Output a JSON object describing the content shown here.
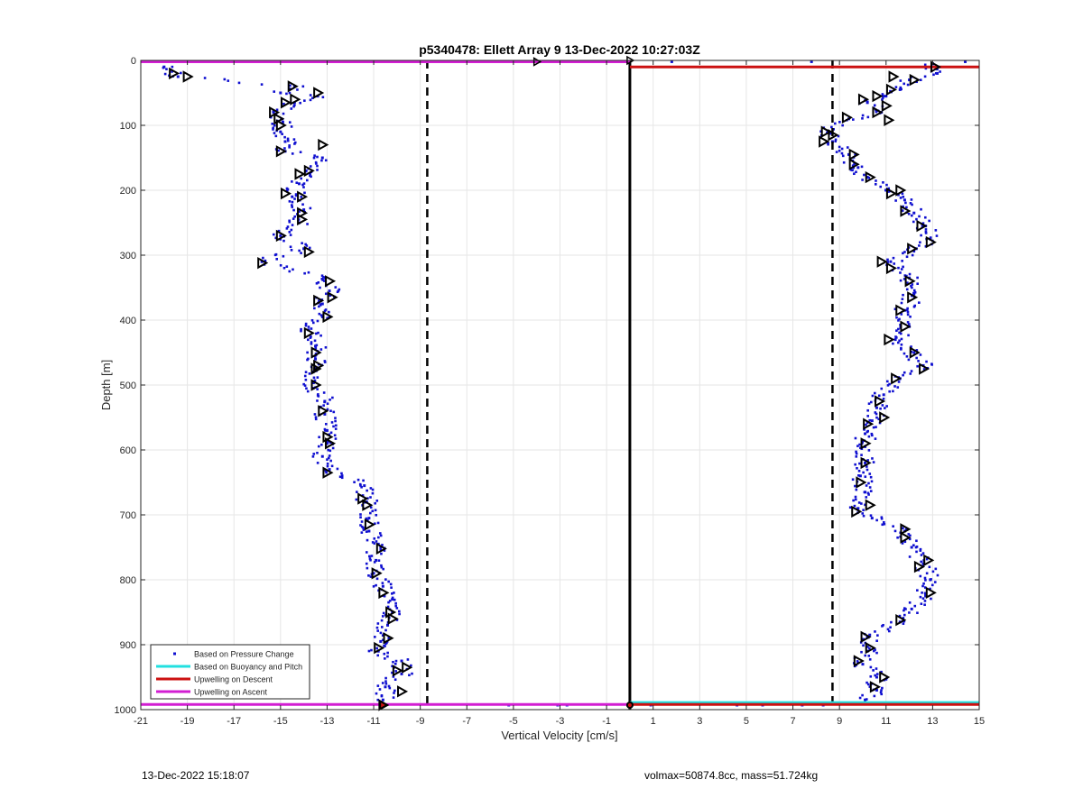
{
  "footer": {
    "timestamp": "13-Dec-2022 15:18:07",
    "params": "volmax=50874.8cc, mass=51.724kg"
  },
  "chart_data": {
    "type": "scatter",
    "title": "p5340478: Ellett Array 9 13-Dec-2022 10:27:03Z",
    "xlabel": "Vertical Velocity [cm/s]",
    "ylabel": "Depth [m]",
    "xlim": [
      -21,
      15
    ],
    "ylim": [
      0,
      1000
    ],
    "y_reversed": true,
    "grid": true,
    "xticks": [
      -21,
      -19,
      -17,
      -15,
      -13,
      -11,
      -9,
      -7,
      -5,
      -3,
      -1,
      1,
      3,
      5,
      7,
      9,
      11,
      13,
      15
    ],
    "xtick_labels": [
      "-21",
      "-19",
      "-17",
      "-15",
      "-13",
      "-11",
      "-9",
      "-7",
      "-5",
      "-3",
      "-1",
      "1",
      "3",
      "5",
      "7",
      "9",
      "11",
      "13",
      "15"
    ],
    "yticks": [
      0,
      100,
      200,
      300,
      400,
      500,
      600,
      700,
      800,
      900,
      1000
    ],
    "ytick_labels": [
      "0",
      "100",
      "200",
      "300",
      "400",
      "500",
      "600",
      "700",
      "800",
      "900",
      "1000"
    ],
    "legend_position": "bottom-left",
    "colors": {
      "pressure": "#1010d0",
      "buoyancy": "#22e0e0",
      "descent": "#cc1111",
      "ascent": "#d21ed2",
      "marker": "#000000"
    },
    "legend": [
      {
        "label": "Based on Pressure Change",
        "style": "dot",
        "color": "#1010d0"
      },
      {
        "label": "Based on Buoyancy and Pitch",
        "style": "line",
        "color": "#22e0e0"
      },
      {
        "label": "Upwelling on Descent",
        "style": "line",
        "color": "#cc1111"
      },
      {
        "label": "Upwelling on Ascent",
        "style": "line",
        "color": "#d21ed2"
      }
    ],
    "reference_lines": [
      {
        "type": "vertical",
        "x": -8.7,
        "style": "dashed",
        "color": "#000000"
      },
      {
        "type": "vertical",
        "x": 8.7,
        "style": "dashed",
        "color": "#000000"
      },
      {
        "type": "vertical",
        "x": 0,
        "style": "solid",
        "color": "#000000"
      }
    ],
    "upwelling_lines": [
      {
        "series": "descent",
        "y": [
          10,
          10
        ],
        "x": [
          0,
          15
        ],
        "color": "#cc1111"
      },
      {
        "series": "ascent",
        "y": [
          2,
          2
        ],
        "x": [
          -21,
          0
        ],
        "color": "#d21ed2"
      },
      {
        "series": "buoyancy",
        "y": [
          989,
          989
        ],
        "x": [
          0,
          15
        ],
        "color": "#22e0e0"
      },
      {
        "series": "descent",
        "y": [
          992,
          992
        ],
        "x": [
          0,
          15
        ],
        "color": "#cc1111"
      },
      {
        "series": "ascent",
        "y": [
          992,
          992
        ],
        "x": [
          -21,
          0
        ],
        "color": "#d21ed2"
      }
    ],
    "series": [
      {
        "name": "Based on Pressure Change",
        "profile": "descent",
        "points": [
          [
            13.0,
            5
          ],
          [
            13.2,
            20
          ],
          [
            12.0,
            30
          ],
          [
            11.6,
            45
          ],
          [
            11.0,
            55
          ],
          [
            10.2,
            65
          ],
          [
            10.8,
            80
          ],
          [
            9.4,
            90
          ],
          [
            8.5,
            110
          ],
          [
            8.7,
            125
          ],
          [
            9.4,
            145
          ],
          [
            9.8,
            165
          ],
          [
            10.2,
            180
          ],
          [
            11.0,
            200
          ],
          [
            11.8,
            215
          ],
          [
            12.2,
            235
          ],
          [
            12.7,
            255
          ],
          [
            12.9,
            275
          ],
          [
            12.3,
            290
          ],
          [
            11.2,
            310
          ],
          [
            12.0,
            335
          ],
          [
            12.2,
            360
          ],
          [
            11.8,
            385
          ],
          [
            12.0,
            410
          ],
          [
            11.4,
            430
          ],
          [
            12.2,
            450
          ],
          [
            12.6,
            470
          ],
          [
            11.6,
            490
          ],
          [
            10.9,
            515
          ],
          [
            10.6,
            535
          ],
          [
            10.4,
            555
          ],
          [
            10.1,
            575
          ],
          [
            10.1,
            595
          ],
          [
            10.1,
            620
          ],
          [
            9.9,
            640
          ],
          [
            10.1,
            665
          ],
          [
            9.8,
            690
          ],
          [
            10.4,
            705
          ],
          [
            11.8,
            725
          ],
          [
            12.1,
            750
          ],
          [
            12.6,
            775
          ],
          [
            12.9,
            800
          ],
          [
            12.7,
            825
          ],
          [
            12.1,
            845
          ],
          [
            11.6,
            865
          ],
          [
            10.3,
            885
          ],
          [
            10.2,
            910
          ],
          [
            10.0,
            930
          ],
          [
            10.6,
            950
          ],
          [
            10.6,
            970
          ],
          [
            10.1,
            985
          ]
        ]
      },
      {
        "name": "Based on Pressure Change",
        "profile": "ascent",
        "points": [
          [
            -20.0,
            10
          ],
          [
            -19.4,
            25
          ],
          [
            -14.4,
            40
          ],
          [
            -15.0,
            50
          ],
          [
            -13.4,
            55
          ],
          [
            -14.4,
            65
          ],
          [
            -15.3,
            80
          ],
          [
            -14.9,
            95
          ],
          [
            -15.0,
            110
          ],
          [
            -14.8,
            125
          ],
          [
            -14.8,
            140
          ],
          [
            -13.2,
            150
          ],
          [
            -13.9,
            170
          ],
          [
            -14.2,
            190
          ],
          [
            -14.5,
            210
          ],
          [
            -14.0,
            230
          ],
          [
            -14.2,
            250
          ],
          [
            -15.0,
            270
          ],
          [
            -14.0,
            290
          ],
          [
            -15.8,
            310
          ],
          [
            -13.1,
            335
          ],
          [
            -12.9,
            355
          ],
          [
            -13.2,
            375
          ],
          [
            -13.2,
            395
          ],
          [
            -13.8,
            415
          ],
          [
            -13.5,
            440
          ],
          [
            -13.5,
            460
          ],
          [
            -13.6,
            480
          ],
          [
            -13.6,
            505
          ],
          [
            -13.1,
            525
          ],
          [
            -13.1,
            545
          ],
          [
            -13.0,
            570
          ],
          [
            -13.0,
            590
          ],
          [
            -13.2,
            610
          ],
          [
            -12.9,
            630
          ],
          [
            -11.4,
            655
          ],
          [
            -11.3,
            680
          ],
          [
            -11.2,
            705
          ],
          [
            -11.2,
            725
          ],
          [
            -10.8,
            745
          ],
          [
            -10.9,
            770
          ],
          [
            -11.0,
            790
          ],
          [
            -10.6,
            810
          ],
          [
            -10.2,
            830
          ],
          [
            -10.2,
            850
          ],
          [
            -10.4,
            870
          ],
          [
            -10.7,
            895
          ],
          [
            -10.8,
            910
          ],
          [
            -9.8,
            925
          ],
          [
            -9.8,
            945
          ],
          [
            -10.5,
            965
          ],
          [
            -10.6,
            985
          ]
        ]
      },
      {
        "name": "Based on Pressure Change",
        "profile": "surface",
        "points": [
          [
            -16.2,
            2
          ],
          [
            -9.5,
            2
          ],
          [
            -4.0,
            2
          ],
          [
            -3.0,
            2
          ],
          [
            -2.2,
            2
          ],
          [
            1.8,
            2
          ],
          [
            7.8,
            2
          ],
          [
            14.4,
            2
          ],
          [
            -5.2,
            993
          ],
          [
            -3.1,
            993
          ],
          [
            -2.7,
            993
          ],
          [
            0.9,
            993
          ],
          [
            4.6,
            993
          ],
          [
            5.7,
            993
          ],
          [
            7.4,
            993
          ],
          [
            8.3,
            993
          ]
        ]
      },
      {
        "name": "",
        "profile": "descent-markers",
        "points": [
          [
            13.1,
            10
          ],
          [
            12.2,
            30
          ],
          [
            11.3,
            25
          ],
          [
            11.2,
            45
          ],
          [
            10.6,
            55
          ],
          [
            10.0,
            60
          ],
          [
            11.0,
            70
          ],
          [
            10.6,
            80
          ],
          [
            11.1,
            92
          ],
          [
            9.3,
            88
          ],
          [
            8.4,
            110
          ],
          [
            8.3,
            125
          ],
          [
            9.6,
            145
          ],
          [
            9.6,
            160
          ],
          [
            10.3,
            180
          ],
          [
            11.2,
            205
          ],
          [
            11.6,
            200
          ],
          [
            11.8,
            232
          ],
          [
            12.5,
            255
          ],
          [
            12.9,
            280
          ],
          [
            12.1,
            290
          ],
          [
            10.8,
            310
          ],
          [
            11.2,
            320
          ],
          [
            12.0,
            340
          ],
          [
            12.1,
            365
          ],
          [
            11.6,
            385
          ],
          [
            11.8,
            410
          ],
          [
            11.1,
            430
          ],
          [
            12.2,
            450
          ],
          [
            12.6,
            475
          ],
          [
            11.4,
            490
          ],
          [
            10.7,
            525
          ],
          [
            10.9,
            550
          ],
          [
            10.2,
            560
          ],
          [
            10.1,
            590
          ],
          [
            10.1,
            620
          ],
          [
            9.9,
            650
          ],
          [
            10.3,
            685
          ],
          [
            9.7,
            695
          ],
          [
            11.8,
            722
          ],
          [
            11.8,
            735
          ],
          [
            12.4,
            780
          ],
          [
            12.8,
            770
          ],
          [
            12.9,
            820
          ],
          [
            11.6,
            862
          ],
          [
            10.1,
            888
          ],
          [
            10.3,
            905
          ],
          [
            9.8,
            925
          ],
          [
            10.9,
            950
          ],
          [
            10.5,
            965
          ],
          [
            8.7,
            115
          ]
        ]
      },
      {
        "name": "",
        "profile": "ascent-markers",
        "points": [
          [
            -19.6,
            20
          ],
          [
            -19.0,
            25
          ],
          [
            -14.5,
            40
          ],
          [
            -13.4,
            50
          ],
          [
            -14.4,
            60
          ],
          [
            -14.8,
            65
          ],
          [
            -15.3,
            80
          ],
          [
            -15.1,
            90
          ],
          [
            -15.0,
            100
          ],
          [
            -15.0,
            140
          ],
          [
            -13.2,
            130
          ],
          [
            -13.8,
            170
          ],
          [
            -14.2,
            175
          ],
          [
            -14.8,
            205
          ],
          [
            -14.1,
            210
          ],
          [
            -14.1,
            235
          ],
          [
            -14.1,
            245
          ],
          [
            -15.0,
            270
          ],
          [
            -13.8,
            295
          ],
          [
            -15.8,
            312
          ],
          [
            -12.9,
            340
          ],
          [
            -12.8,
            365
          ],
          [
            -13.4,
            370
          ],
          [
            -13.0,
            395
          ],
          [
            -13.8,
            420
          ],
          [
            -13.5,
            450
          ],
          [
            -13.4,
            470
          ],
          [
            -13.5,
            475
          ],
          [
            -13.5,
            500
          ],
          [
            -13.2,
            540
          ],
          [
            -13.0,
            580
          ],
          [
            -12.9,
            590
          ],
          [
            -13.0,
            635
          ],
          [
            -11.5,
            675
          ],
          [
            -11.3,
            685
          ],
          [
            -11.2,
            715
          ],
          [
            -10.7,
            752
          ],
          [
            -10.9,
            790
          ],
          [
            -10.6,
            820
          ],
          [
            -10.3,
            850
          ],
          [
            -10.2,
            860
          ],
          [
            -10.4,
            890
          ],
          [
            -10.8,
            905
          ],
          [
            -9.6,
            935
          ],
          [
            -10.0,
            940
          ],
          [
            -9.8,
            972
          ],
          [
            -10.6,
            993
          ]
        ]
      }
    ]
  }
}
